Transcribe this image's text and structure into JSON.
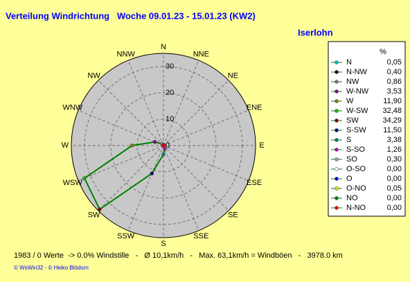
{
  "chart_data": {
    "type": "radar",
    "title": "Verteilung Windrichtung   Woche 09.01.23 - 15.01.23 (KW2)",
    "location": "Iserlohn",
    "directions": [
      "N",
      "NNE",
      "NE",
      "ENE",
      "E",
      "ESE",
      "SE",
      "SSE",
      "S",
      "SSW",
      "SW",
      "WSW",
      "W",
      "WNW",
      "NW",
      "NNW"
    ],
    "rlim": [
      0,
      35
    ],
    "rticks": [
      0,
      10,
      20,
      30
    ],
    "legend_header": "%",
    "categories": [
      "N",
      "N-NW",
      "NW",
      "W-NW",
      "W",
      "W-SW",
      "SW",
      "S-SW",
      "S",
      "S-SO",
      "SO",
      "O-SO",
      "O",
      "O-NO",
      "NO",
      "N-NO"
    ],
    "values": [
      0.05,
      0.4,
      0.86,
      3.53,
      11.9,
      32.48,
      34.29,
      11.5,
      3.38,
      1.26,
      0.3,
      0.0,
      0.0,
      0.05,
      0.0,
      0.0
    ],
    "value_labels": [
      "0,05",
      "0,40",
      "0,86",
      "3,53",
      "11,90",
      "32,48",
      "34,29",
      "11,50",
      "3,38",
      "1,26",
      "0,30",
      "0,00",
      "0,00",
      "0,05",
      "0,00",
      "0,00"
    ],
    "line_color": "#008000",
    "point_colors": [
      "#00c0c0",
      "#000000",
      "#808080",
      "#800080",
      "#808000",
      "#00c000",
      "#800000",
      "#000080",
      "#008080",
      "#c000c0",
      "#a0a0a0",
      "#ffffff",
      "#0000ff",
      "#e0e000",
      "#008000",
      "#ff0000"
    ],
    "footer": "1983 / 0 Werte  -> 0.0% Windstille   -   Ø 10,1km/h   -   Max. 63,1km/h = Windböen   -   3978.0 km",
    "credit": "© WsWin32  - © Heiko Blödorn"
  }
}
